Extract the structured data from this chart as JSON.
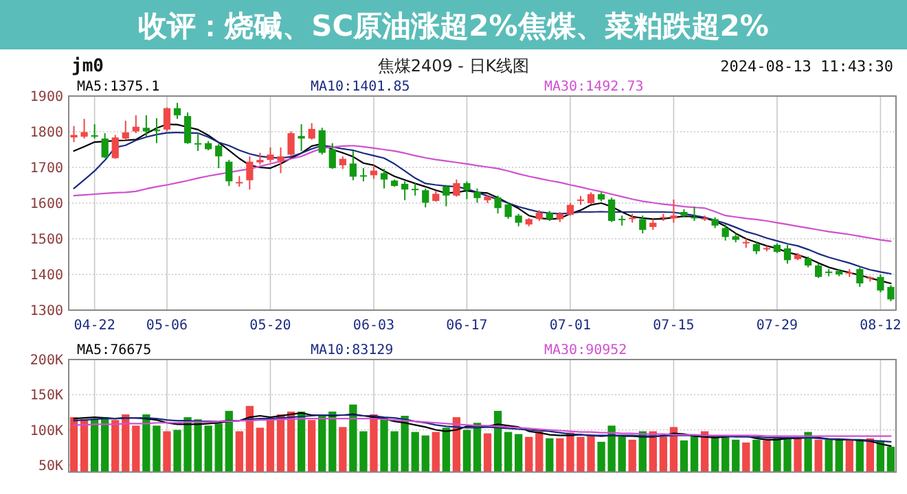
{
  "chart_data": [
    {
      "type": "candlestick",
      "title": "收评：烧碱、SC原油涨超2%焦煤、菜粕跌超2%",
      "subtitle": "焦煤2409 - 日K线图",
      "annotations": [
        "jm0",
        "2024-08-13 11:43:30"
      ],
      "categories": [
        null,
        null,
        "04-22",
        null,
        null,
        null,
        null,
        null,
        null,
        "05-06",
        null,
        null,
        null,
        null,
        null,
        null,
        null,
        null,
        null,
        "05-20",
        null,
        null,
        null,
        null,
        null,
        null,
        null,
        null,
        null,
        "06-03",
        null,
        null,
        null,
        null,
        null,
        null,
        null,
        null,
        "06-17",
        null,
        null,
        null,
        null,
        null,
        null,
        null,
        null,
        null,
        "07-01",
        null,
        null,
        null,
        null,
        null,
        null,
        null,
        null,
        null,
        "07-15",
        null,
        null,
        null,
        null,
        null,
        null,
        null,
        null,
        null,
        "07-29",
        null,
        null,
        null,
        null,
        null,
        null,
        null,
        null,
        null,
        "08-12",
        null
      ],
      "ohlc": [
        [
          1784,
          1816,
          1771,
          1791
        ],
        [
          1786,
          1836,
          1781,
          1799
        ],
        [
          1790,
          1821,
          1781,
          1788
        ],
        [
          1781,
          1796,
          1726,
          1728
        ],
        [
          1726,
          1791,
          1724,
          1784
        ],
        [
          1781,
          1831,
          1778,
          1798
        ],
        [
          1801,
          1846,
          1796,
          1814
        ],
        [
          1811,
          1846,
          1786,
          1801
        ],
        [
          1806,
          1838,
          1768,
          1804
        ],
        [
          1806,
          1868,
          1801,
          1866
        ],
        [
          1866,
          1881,
          1836,
          1846
        ],
        [
          1844,
          1854,
          1766,
          1768
        ],
        [
          1768,
          1796,
          1746,
          1766
        ],
        [
          1768,
          1774,
          1748,
          1751
        ],
        [
          1761,
          1766,
          1698,
          1731
        ],
        [
          1716,
          1721,
          1648,
          1661
        ],
        [
          1657,
          1676,
          1646,
          1659
        ],
        [
          1664,
          1731,
          1638,
          1716
        ],
        [
          1714,
          1741,
          1708,
          1721
        ],
        [
          1721,
          1756,
          1714,
          1736
        ],
        [
          1718,
          1756,
          1684,
          1731
        ],
        [
          1736,
          1801,
          1731,
          1796
        ],
        [
          1788,
          1821,
          1746,
          1781
        ],
        [
          1781,
          1824,
          1778,
          1808
        ],
        [
          1804,
          1811,
          1736,
          1741
        ],
        [
          1751,
          1768,
          1696,
          1698
        ],
        [
          1706,
          1731,
          1696,
          1724
        ],
        [
          1711,
          1746,
          1664,
          1674
        ],
        [
          1678,
          1698,
          1661,
          1676
        ],
        [
          1678,
          1706,
          1668,
          1691
        ],
        [
          1684,
          1696,
          1641,
          1666
        ],
        [
          1663,
          1666,
          1646,
          1648
        ],
        [
          1654,
          1661,
          1608,
          1638
        ],
        [
          1640,
          1656,
          1621,
          1638
        ],
        [
          1636,
          1641,
          1588,
          1601
        ],
        [
          1606,
          1634,
          1604,
          1626
        ],
        [
          1646,
          1651,
          1591,
          1621
        ],
        [
          1621,
          1666,
          1618,
          1656
        ],
        [
          1656,
          1661,
          1611,
          1636
        ],
        [
          1631,
          1641,
          1601,
          1614
        ],
        [
          1608,
          1621,
          1600,
          1618
        ],
        [
          1616,
          1621,
          1571,
          1586
        ],
        [
          1596,
          1601,
          1556,
          1561
        ],
        [
          1565,
          1570,
          1535,
          1545
        ],
        [
          1540,
          1558,
          1535,
          1555
        ],
        [
          1555,
          1580,
          1550,
          1573
        ],
        [
          1573,
          1578,
          1550,
          1555
        ],
        [
          1555,
          1575,
          1547,
          1570
        ],
        [
          1567,
          1600,
          1565,
          1595
        ],
        [
          1608,
          1620,
          1595,
          1610
        ],
        [
          1600,
          1630,
          1597,
          1625
        ],
        [
          1625,
          1630,
          1605,
          1610
        ],
        [
          1610,
          1615,
          1547,
          1550
        ],
        [
          1556,
          1565,
          1537,
          1554
        ],
        [
          1557,
          1570,
          1545,
          1559
        ],
        [
          1555,
          1565,
          1515,
          1525
        ],
        [
          1533,
          1555,
          1525,
          1545
        ],
        [
          1559,
          1570,
          1550,
          1561
        ],
        [
          1557,
          1610,
          1545,
          1565
        ],
        [
          1575,
          1583,
          1560,
          1565
        ],
        [
          1561,
          1590,
          1550,
          1559
        ],
        [
          1556,
          1565,
          1550,
          1558
        ],
        [
          1555,
          1560,
          1530,
          1537
        ],
        [
          1530,
          1540,
          1495,
          1505
        ],
        [
          1507,
          1515,
          1490,
          1497
        ],
        [
          1489,
          1500,
          1475,
          1491
        ],
        [
          1485,
          1490,
          1457,
          1465
        ],
        [
          1472,
          1480,
          1465,
          1474
        ],
        [
          1483,
          1487,
          1460,
          1463
        ],
        [
          1473,
          1483,
          1430,
          1440
        ],
        [
          1443,
          1460,
          1440,
          1455
        ],
        [
          1445,
          1450,
          1420,
          1425
        ],
        [
          1425,
          1430,
          1390,
          1393
        ],
        [
          1408,
          1415,
          1395,
          1406
        ],
        [
          1410,
          1415,
          1395,
          1400
        ],
        [
          1404,
          1415,
          1393,
          1406
        ],
        [
          1415,
          1420,
          1365,
          1375
        ],
        [
          1388,
          1395,
          1380,
          1392
        ],
        [
          1393,
          1400,
          1350,
          1355
        ],
        [
          1365,
          1370,
          1325,
          1330
        ]
      ],
      "colors": [
        "#f04848",
        "#f04848",
        "#139a13",
        "#139a13",
        "#f04848",
        "#f04848",
        "#f04848",
        "#139a13",
        "#139a13",
        "#f04848",
        "#139a13",
        "#139a13",
        "#139a13",
        "#139a13",
        "#139a13",
        "#139a13",
        "#f04848",
        "#f04848",
        "#f04848",
        "#f04848",
        "#f04848",
        "#f04848",
        "#139a13",
        "#f04848",
        "#139a13",
        "#139a13",
        "#f04848",
        "#139a13",
        "#139a13",
        "#f04848",
        "#139a13",
        "#139a13",
        "#139a13",
        "#139a13",
        "#139a13",
        "#f04848",
        "#139a13",
        "#f04848",
        "#139a13",
        "#139a13",
        "#f04848",
        "#139a13",
        "#139a13",
        "#139a13",
        "#f04848",
        "#f04848",
        "#139a13",
        "#f04848",
        "#f04848",
        "#f04848",
        "#f04848",
        "#139a13",
        "#139a13",
        "#139a13",
        "#f04848",
        "#139a13",
        "#f04848",
        "#f04848",
        "#f04848",
        "#139a13",
        "#139a13",
        "#f04848",
        "#139a13",
        "#139a13",
        "#139a13",
        "#f04848",
        "#139a13",
        "#f04848",
        "#139a13",
        "#139a13",
        "#f04848",
        "#139a13",
        "#139a13",
        "#139a13",
        "#139a13",
        "#f04848",
        "#139a13",
        "#f04848",
        "#139a13",
        "#139a13"
      ],
      "series": [
        {
          "name": "MA5:1375.1",
          "type": "line",
          "color": "#000000",
          "values": [
            1746,
            1758,
            1771,
            1773,
            1775,
            1776,
            1778,
            1795,
            1810,
            1821,
            1820,
            1813,
            1806,
            1790,
            1770,
            1748,
            1725,
            1706,
            1700,
            1698,
            1710,
            1726,
            1740,
            1760,
            1766,
            1750,
            1741,
            1730,
            1712,
            1706,
            1690,
            1675,
            1665,
            1655,
            1646,
            1636,
            1628,
            1630,
            1635,
            1630,
            1628,
            1615,
            1600,
            1585,
            1565,
            1558,
            1555,
            1557,
            1570,
            1580,
            1595,
            1600,
            1590,
            1575,
            1562,
            1558,
            1555,
            1556,
            1560,
            1563,
            1562,
            1558,
            1550,
            1535,
            1515,
            1500,
            1490,
            1480,
            1473,
            1462,
            1455,
            1445,
            1432,
            1420,
            1412,
            1405,
            1398,
            1390,
            1382,
            1375
          ]
        },
        {
          "name": "MA10:1401.85",
          "type": "line",
          "color": "#1a2a80",
          "values": [
            1641,
            1665,
            1690,
            1720,
            1756,
            1762,
            1776,
            1785,
            1792,
            1797,
            1798,
            1797,
            1796,
            1785,
            1770,
            1761,
            1748,
            1738,
            1731,
            1728,
            1726,
            1730,
            1740,
            1752,
            1761,
            1758,
            1752,
            1748,
            1740,
            1733,
            1726,
            1710,
            1690,
            1670,
            1655,
            1651,
            1648,
            1646,
            1640,
            1630,
            1620,
            1610,
            1600,
            1590,
            1582,
            1575,
            1572,
            1570,
            1572,
            1575,
            1575,
            1576,
            1575,
            1575,
            1575,
            1575,
            1575,
            1575,
            1574,
            1570,
            1565,
            1560,
            1552,
            1543,
            1532,
            1520,
            1512,
            1502,
            1494,
            1486,
            1480,
            1470,
            1458,
            1448,
            1440,
            1432,
            1422,
            1413,
            1407,
            1402
          ]
        },
        {
          "name": "MA30:1492.73",
          "type": "line",
          "color": "#d050d0",
          "values": [
            1621,
            1623,
            1625,
            1627,
            1629,
            1630,
            1633,
            1640,
            1646,
            1651,
            1657,
            1663,
            1670,
            1676,
            1681,
            1686,
            1691,
            1696,
            1703,
            1710,
            1717,
            1724,
            1731,
            1743,
            1754,
            1757,
            1760,
            1761,
            1758,
            1754,
            1750,
            1746,
            1740,
            1733,
            1727,
            1722,
            1718,
            1714,
            1710,
            1705,
            1701,
            1697,
            1690,
            1682,
            1675,
            1669,
            1663,
            1658,
            1651,
            1645,
            1638,
            1632,
            1625,
            1618,
            1611,
            1605,
            1601,
            1597,
            1594,
            1590,
            1588,
            1586,
            1576,
            1565,
            1561,
            1557,
            1554,
            1550,
            1545,
            1540,
            1535,
            1530,
            1525,
            1520,
            1516,
            1512,
            1507,
            1502,
            1497,
            1493
          ]
        }
      ],
      "ylim": [
        1300,
        1900
      ],
      "yticks": [
        1300,
        1400,
        1500,
        1600,
        1700,
        1800,
        1900
      ],
      "grid": true,
      "legend": "top left",
      "marker": "none",
      "line_style": "solid"
    },
    {
      "type": "bar",
      "categories": [
        null,
        null,
        null,
        null,
        null,
        null,
        null,
        null,
        null,
        null,
        null,
        null,
        null,
        null,
        null,
        null,
        null,
        null,
        null,
        null,
        null,
        null,
        null,
        null,
        null,
        null,
        null,
        null,
        null,
        null,
        null,
        null,
        null,
        null,
        null,
        null,
        null,
        null,
        null,
        null,
        null,
        null,
        null,
        null,
        null,
        null,
        null,
        null,
        null,
        null,
        null,
        null,
        null,
        null,
        null,
        null,
        null,
        null,
        null,
        null,
        null,
        null,
        null,
        null,
        null,
        null,
        null,
        null,
        null,
        null,
        null,
        null,
        null,
        null,
        null,
        null,
        null,
        null,
        null,
        null
      ],
      "values": [
        118000,
        115000,
        116000,
        118000,
        114000,
        122000,
        106000,
        122000,
        106000,
        98000,
        100000,
        118000,
        115000,
        106000,
        109000,
        127000,
        98000,
        134000,
        103000,
        114000,
        122000,
        126000,
        126000,
        114000,
        121000,
        126000,
        104000,
        136000,
        98000,
        122000,
        118000,
        98000,
        120000,
        97000,
        92000,
        97000,
        103000,
        118000,
        100000,
        110000,
        95000,
        127000,
        97000,
        94000,
        90000,
        98000,
        88000,
        88000,
        96000,
        90000,
        91000,
        83000,
        106000,
        90000,
        86000,
        98000,
        98000,
        90000,
        104000,
        85000,
        91000,
        98000,
        92000,
        92000,
        86000,
        82000,
        86000,
        85000,
        90000,
        88000,
        88000,
        97000,
        86000,
        86000,
        86000,
        85000,
        85000,
        88000,
        85000,
        76000
      ],
      "colors": [
        "#f04848",
        "#f04848",
        "#139a13",
        "#139a13",
        "#f04848",
        "#f04848",
        "#f04848",
        "#139a13",
        "#139a13",
        "#f04848",
        "#139a13",
        "#139a13",
        "#139a13",
        "#139a13",
        "#139a13",
        "#139a13",
        "#f04848",
        "#f04848",
        "#f04848",
        "#f04848",
        "#f04848",
        "#f04848",
        "#139a13",
        "#f04848",
        "#139a13",
        "#139a13",
        "#f04848",
        "#139a13",
        "#139a13",
        "#f04848",
        "#139a13",
        "#139a13",
        "#139a13",
        "#139a13",
        "#139a13",
        "#f04848",
        "#139a13",
        "#f04848",
        "#139a13",
        "#139a13",
        "#f04848",
        "#139a13",
        "#139a13",
        "#139a13",
        "#f04848",
        "#f04848",
        "#139a13",
        "#f04848",
        "#f04848",
        "#f04848",
        "#f04848",
        "#139a13",
        "#139a13",
        "#139a13",
        "#f04848",
        "#139a13",
        "#f04848",
        "#f04848",
        "#f04848",
        "#139a13",
        "#139a13",
        "#f04848",
        "#139a13",
        "#139a13",
        "#139a13",
        "#f04848",
        "#139a13",
        "#f04848",
        "#139a13",
        "#139a13",
        "#f04848",
        "#139a13",
        "#f04848",
        "#139a13",
        "#139a13",
        "#f04848",
        "#139a13",
        "#f04848",
        "#139a13",
        "#139a13"
      ],
      "series": [
        {
          "name": "MA5:76675",
          "type": "line",
          "color": "#000000",
          "values": [
            116000,
            117000,
            118000,
            117000,
            116000,
            117000,
            117000,
            116000,
            114000,
            110000,
            108000,
            108000,
            108000,
            109000,
            110000,
            112000,
            113000,
            118000,
            120000,
            118000,
            120000,
            122000,
            124000,
            121000,
            121000,
            120000,
            121000,
            122000,
            120000,
            118000,
            116000,
            112000,
            110000,
            107000,
            104000,
            100000,
            98000,
            100000,
            105000,
            106000,
            105000,
            108000,
            106000,
            104000,
            98000,
            96000,
            93000,
            92000,
            92000,
            93000,
            92000,
            91000,
            92000,
            91000,
            91000,
            90000,
            90000,
            92000,
            95000,
            94000,
            91000,
            90000,
            89000,
            90000,
            91000,
            91000,
            88000,
            86000,
            86000,
            88000,
            88000,
            89000,
            89000,
            87000,
            86000,
            86000,
            85000,
            84000,
            80000,
            77000
          ]
        },
        {
          "name": "MA10:83129",
          "type": "line",
          "color": "#1a2a80",
          "values": [
            113000,
            114000,
            115000,
            116000,
            116000,
            117000,
            117000,
            117000,
            116000,
            114000,
            113000,
            113000,
            112000,
            112000,
            112000,
            113000,
            113000,
            115000,
            116000,
            116000,
            117000,
            118000,
            119000,
            120000,
            121000,
            121000,
            121000,
            121000,
            120000,
            120000,
            118000,
            117000,
            115000,
            112000,
            110000,
            107000,
            105000,
            104000,
            103000,
            103000,
            104000,
            103000,
            102000,
            101000,
            100000,
            99000,
            98000,
            96000,
            94000,
            93000,
            92000,
            92000,
            92000,
            92000,
            92000,
            91000,
            91000,
            91000,
            92000,
            92000,
            92000,
            92000,
            91000,
            91000,
            90000,
            90000,
            90000,
            89000,
            89000,
            89000,
            89000,
            89000,
            88000,
            87000,
            87000,
            86000,
            86000,
            85000,
            84000,
            83000
          ]
        },
        {
          "name": "MA30:90952",
          "type": "line",
          "color": "#d050d0",
          "values": [
            107000,
            107000,
            108000,
            108000,
            108000,
            109000,
            109000,
            109000,
            110000,
            110000,
            110000,
            111000,
            111000,
            111000,
            112000,
            112000,
            113000,
            113000,
            114000,
            114000,
            115000,
            115000,
            116000,
            116000,
            116000,
            116000,
            116000,
            116000,
            116000,
            116000,
            115000,
            114000,
            113000,
            112000,
            111000,
            110000,
            109000,
            108000,
            107000,
            106000,
            106000,
            105000,
            104000,
            103000,
            102000,
            101000,
            100000,
            99000,
            98000,
            97000,
            97000,
            96000,
            96000,
            95000,
            95000,
            94000,
            94000,
            94000,
            93000,
            93000,
            93000,
            92000,
            92000,
            92000,
            92000,
            92000,
            92000,
            91000,
            91000,
            91000,
            91000,
            91000,
            91000,
            91000,
            91000,
            91000,
            91000,
            91000,
            91000,
            91000
          ]
        }
      ],
      "ylim": [
        40000,
        200000
      ],
      "yticks": [
        {
          "value": 50000,
          "label": "50K"
        },
        {
          "value": 100000,
          "label": "100K"
        },
        {
          "value": 150000,
          "label": "150K"
        },
        {
          "value": 200000,
          "label": "200K"
        }
      ],
      "grid": true,
      "legend": "top left",
      "tick_labels": "y",
      "marker": "none",
      "line_style": "solid"
    }
  ]
}
